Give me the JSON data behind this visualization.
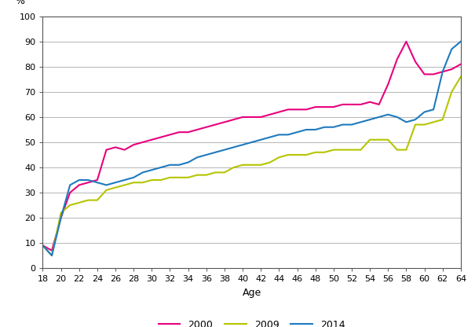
{
  "ages": [
    18,
    19,
    20,
    21,
    22,
    23,
    24,
    25,
    26,
    27,
    28,
    29,
    30,
    31,
    32,
    33,
    34,
    35,
    36,
    37,
    38,
    39,
    40,
    41,
    42,
    43,
    44,
    45,
    46,
    47,
    48,
    49,
    50,
    51,
    52,
    53,
    54,
    55,
    56,
    57,
    58,
    59,
    60,
    61,
    62,
    63,
    64
  ],
  "series_2000": [
    9,
    7,
    20,
    30,
    33,
    34,
    35,
    47,
    48,
    47,
    49,
    50,
    51,
    52,
    53,
    54,
    54,
    55,
    56,
    57,
    58,
    59,
    60,
    60,
    60,
    61,
    62,
    63,
    63,
    63,
    64,
    64,
    64,
    65,
    65,
    65,
    66,
    65,
    73,
    83,
    90,
    82,
    77,
    77,
    78,
    79,
    81
  ],
  "series_2009": [
    9,
    5,
    22,
    25,
    26,
    27,
    27,
    31,
    32,
    33,
    34,
    34,
    35,
    35,
    36,
    36,
    36,
    37,
    37,
    38,
    38,
    40,
    41,
    41,
    41,
    42,
    44,
    45,
    45,
    45,
    46,
    46,
    47,
    47,
    47,
    47,
    51,
    51,
    51,
    47,
    47,
    57,
    57,
    58,
    59,
    70,
    76
  ],
  "series_2014": [
    9,
    5,
    20,
    33,
    35,
    35,
    34,
    33,
    34,
    35,
    36,
    38,
    39,
    40,
    41,
    41,
    42,
    44,
    45,
    46,
    47,
    48,
    49,
    50,
    51,
    52,
    53,
    53,
    54,
    55,
    55,
    56,
    56,
    57,
    57,
    58,
    59,
    60,
    61,
    60,
    58,
    59,
    62,
    63,
    78,
    87,
    90
  ],
  "color_2000": "#e8007d",
  "color_2009": "#b5c500",
  "color_2014": "#1e7abf",
  "xlabel": "Age",
  "ylabel": "%",
  "ylim": [
    0,
    100
  ],
  "xlim": [
    18,
    64
  ],
  "yticks": [
    0,
    10,
    20,
    30,
    40,
    50,
    60,
    70,
    80,
    90,
    100
  ],
  "xticks": [
    18,
    20,
    22,
    24,
    26,
    28,
    30,
    32,
    34,
    36,
    38,
    40,
    42,
    44,
    46,
    48,
    50,
    52,
    54,
    56,
    58,
    60,
    62,
    64
  ],
  "legend_labels": [
    "2000",
    "2009",
    "2014"
  ],
  "linewidth": 1.5,
  "grid_color": "#888888",
  "spine_color": "#555555"
}
